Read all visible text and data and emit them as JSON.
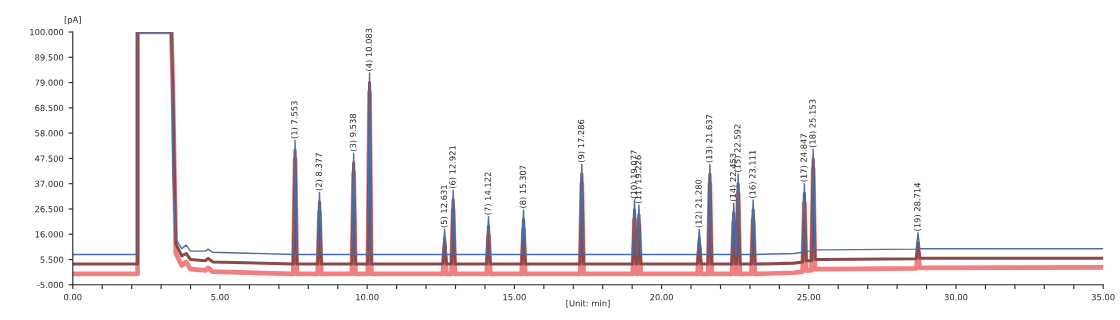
{
  "chart_data": {
    "type": "line",
    "xlabel": "[Unit: min]",
    "ylabel": "[pA]",
    "xlim": [
      0,
      35
    ],
    "ylim": [
      -5,
      100
    ],
    "xticks": [
      {
        "value": 0,
        "label": "0.00"
      },
      {
        "value": 1,
        "label": null
      },
      {
        "value": 2,
        "label": null
      },
      {
        "value": 3,
        "label": null
      },
      {
        "value": 4,
        "label": null
      },
      {
        "value": 5,
        "label": "5.00"
      },
      {
        "value": 6,
        "label": null
      },
      {
        "value": 7,
        "label": null
      },
      {
        "value": 8,
        "label": null
      },
      {
        "value": 9,
        "label": null
      },
      {
        "value": 10,
        "label": "10.00"
      },
      {
        "value": 11,
        "label": null
      },
      {
        "value": 12,
        "label": null
      },
      {
        "value": 13,
        "label": null
      },
      {
        "value": 14,
        "label": null
      },
      {
        "value": 15,
        "label": "15.00"
      },
      {
        "value": 16,
        "label": null
      },
      {
        "value": 17,
        "label": null
      },
      {
        "value": 18,
        "label": null
      },
      {
        "value": 19,
        "label": null
      },
      {
        "value": 20,
        "label": "20.00"
      },
      {
        "value": 21,
        "label": null
      },
      {
        "value": 22,
        "label": null
      },
      {
        "value": 23,
        "label": null
      },
      {
        "value": 24,
        "label": null
      },
      {
        "value": 25,
        "label": "25.00"
      },
      {
        "value": 26,
        "label": null
      },
      {
        "value": 27,
        "label": null
      },
      {
        "value": 28,
        "label": null
      },
      {
        "value": 29,
        "label": null
      },
      {
        "value": 30,
        "label": "30.00"
      },
      {
        "value": 31,
        "label": null
      },
      {
        "value": 32,
        "label": null
      },
      {
        "value": 33,
        "label": null
      },
      {
        "value": 34,
        "label": null
      },
      {
        "value": 35,
        "label": "35.00"
      }
    ],
    "yticks": [
      {
        "value": -5,
        "label": "-5.000"
      },
      {
        "value": 5.5,
        "label": "5.500"
      },
      {
        "value": 16,
        "label": "16.000"
      },
      {
        "value": 26.5,
        "label": "26.500"
      },
      {
        "value": 37,
        "label": "37.000"
      },
      {
        "value": 47.5,
        "label": "47.500"
      },
      {
        "value": 58,
        "label": "58.000"
      },
      {
        "value": 68.5,
        "label": "68.500"
      },
      {
        "value": 79,
        "label": "79.000"
      },
      {
        "value": 89.5,
        "label": "89.500"
      },
      {
        "value": 100,
        "label": "100.000"
      }
    ],
    "x": [
      0,
      2.2,
      2.2,
      3.35,
      3.4,
      3.5,
      3.7,
      3.85,
      4.0,
      4.5,
      4.6,
      4.75,
      7.49,
      7.55,
      7.61,
      8.32,
      8.38,
      8.44,
      9.48,
      9.54,
      9.6,
      10.02,
      10.08,
      10.14,
      12.57,
      12.63,
      12.69,
      12.86,
      12.92,
      12.98,
      14.06,
      14.12,
      14.18,
      15.25,
      15.31,
      15.37,
      17.23,
      17.29,
      17.35,
      19.02,
      19.08,
      19.14,
      19.17,
      19.23,
      19.29,
      21.22,
      21.28,
      21.34,
      21.58,
      21.64,
      21.7,
      22.39,
      22.45,
      22.51,
      22.54,
      22.6,
      22.66,
      23.05,
      23.11,
      23.17,
      24.5,
      24.79,
      24.85,
      24.91,
      25.09,
      25.15,
      25.21,
      25.5,
      28.65,
      28.71,
      28.77,
      35
    ],
    "series": [
      {
        "color": "#4a6fa5",
        "values": [
          7.6,
          7.6,
          100,
          100,
          40,
          14,
          10,
          11.5,
          9,
          9,
          9.8,
          8.5,
          7.6,
          55,
          7.6,
          7.6,
          33.4,
          7.6,
          7.6,
          49.7,
          7.6,
          7.6,
          83,
          7.6,
          7.6,
          18,
          7.6,
          7.6,
          34.3,
          7.6,
          7.6,
          23.3,
          7.6,
          7.6,
          26.1,
          7.6,
          7.6,
          45.1,
          7.6,
          7.6,
          30.2,
          7.6,
          7.6,
          28.1,
          7.6,
          7.6,
          18,
          7.6,
          7.6,
          45,
          7.6,
          7.6,
          28.9,
          7.6,
          7.6,
          41,
          7.6,
          7.6,
          30.2,
          7.6,
          8.0,
          8.5,
          37,
          9,
          9,
          51.3,
          9.5,
          9.5,
          9.8,
          16.6,
          10,
          10
        ]
      },
      {
        "color": "#8b4a4a",
        "values": [
          3.6,
          3.6,
          100,
          100,
          76,
          12,
          7,
          8,
          5.5,
          5,
          6,
          4.5,
          3.6,
          51,
          3.6,
          3.6,
          29.4,
          3.6,
          3.6,
          45.7,
          3.6,
          3.6,
          79,
          3.6,
          3.6,
          14,
          3.6,
          3.6,
          30.3,
          3.6,
          3.6,
          19.3,
          3.6,
          3.6,
          22.1,
          3.6,
          3.6,
          41.1,
          3.6,
          3.6,
          26.2,
          3.6,
          3.6,
          24.1,
          3.6,
          3.6,
          14,
          3.6,
          3.6,
          41,
          3.6,
          3.6,
          24.9,
          3.6,
          3.6,
          37,
          3.6,
          3.6,
          26.2,
          3.6,
          4.0,
          4.5,
          33,
          5,
          5,
          47.3,
          5.5,
          5.5,
          5.8,
          12.6,
          6,
          6
        ]
      },
      {
        "color": "#f08080",
        "values": [
          -0.5,
          -0.5,
          100,
          100,
          76,
          8,
          3,
          4.5,
          1.5,
          1,
          2,
          0.5,
          -0.5,
          47,
          -0.5,
          -0.5,
          25.4,
          -0.5,
          -0.5,
          41.7,
          -0.5,
          -0.5,
          75,
          -0.5,
          -0.5,
          10,
          -0.5,
          -0.5,
          26.3,
          -0.5,
          -0.5,
          15.3,
          -0.5,
          -0.5,
          18.1,
          -0.5,
          -0.5,
          37.1,
          -0.5,
          -0.5,
          22.2,
          -0.5,
          -0.5,
          20.1,
          -0.5,
          -0.5,
          10,
          -0.5,
          -0.5,
          37,
          -0.5,
          -0.5,
          20.9,
          -0.5,
          -0.5,
          33,
          -0.5,
          -0.5,
          22.2,
          -0.5,
          0.0,
          0.5,
          29,
          1,
          1,
          43.3,
          1.5,
          1.5,
          1.8,
          8.6,
          2,
          2.2
        ]
      }
    ],
    "annotations": [
      {
        "text": "(1) 7.553",
        "x": 7.55,
        "y": 55
      },
      {
        "text": "(2) 8.377",
        "x": 8.38,
        "y": 33.4
      },
      {
        "text": "(3) 9.538",
        "x": 9.54,
        "y": 49.7
      },
      {
        "text": "(4) 10.083",
        "x": 10.08,
        "y": 83
      },
      {
        "text": "(5) 12.631",
        "x": 12.63,
        "y": 18
      },
      {
        "text": "(6) 12.921",
        "x": 12.92,
        "y": 34.3
      },
      {
        "text": "(7) 14.122",
        "x": 14.12,
        "y": 23.3
      },
      {
        "text": "(8) 15.307",
        "x": 15.31,
        "y": 26.1
      },
      {
        "text": "(9) 17.286",
        "x": 17.29,
        "y": 45.1
      },
      {
        "text": "(10) 19.077",
        "x": 19.08,
        "y": 30.2
      },
      {
        "text": "(11) 19.226",
        "x": 19.23,
        "y": 28.1
      },
      {
        "text": "(12) 21.280",
        "x": 21.28,
        "y": 18
      },
      {
        "text": "(13) 21.637",
        "x": 21.64,
        "y": 45
      },
      {
        "text": "(14) 22.453",
        "x": 22.45,
        "y": 28.9
      },
      {
        "text": "(15) 22.592",
        "x": 22.6,
        "y": 41
      },
      {
        "text": "(16) 23.111",
        "x": 23.11,
        "y": 30.2
      },
      {
        "text": "(17) 24.847",
        "x": 24.85,
        "y": 37
      },
      {
        "text": "(18) 25.153",
        "x": 25.15,
        "y": 51.3
      },
      {
        "text": "(19) 28.714",
        "x": 28.71,
        "y": 16.6
      }
    ]
  }
}
